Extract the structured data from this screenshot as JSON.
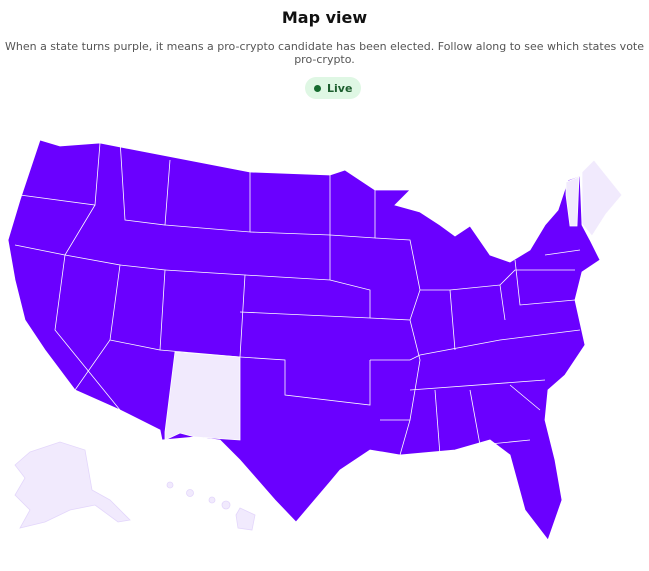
{
  "header": {
    "title": "Map view",
    "subtitle": "When a state turns purple, it means a pro-crypto candidate has been elected. Follow along to see which states vote pro-crypto."
  },
  "status": {
    "label": "Live",
    "color": "#166b2f"
  },
  "map": {
    "colors": {
      "pro_crypto": "#6a00ff",
      "not_called": "#f1eafd",
      "border": "#ffffff"
    },
    "light_states": [
      "Maine",
      "Vermont",
      "New Mexico",
      "Alaska",
      "Hawaii"
    ],
    "purple_states": "all other contiguous states"
  }
}
